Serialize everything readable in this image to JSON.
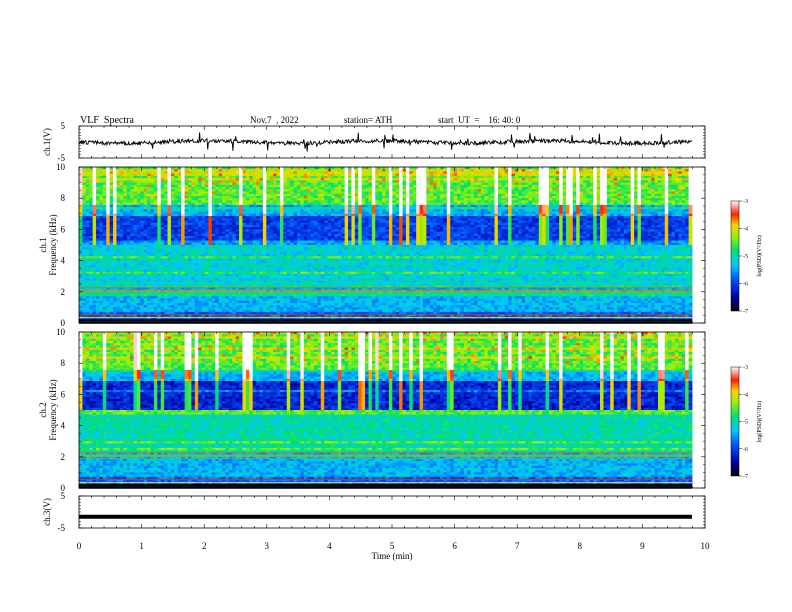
{
  "header": {
    "title": "VLF  Spectra",
    "date": "Nov.7  , 2022",
    "station": "station= ATH",
    "start_ut": "start  UT  =    16: 40: 0"
  },
  "chart_data": [
    {
      "type": "line",
      "ylabel": "ch.1(V)",
      "ylim": [
        -5,
        5
      ],
      "y_ticks": [
        "5",
        "-5"
      ],
      "xlim": [
        0,
        10
      ],
      "description_values": "noisy waveform centered near 0 V with spikes"
    },
    {
      "type": "heatmap",
      "ylabel_channel": "ch.1",
      "ylabel": "Frequency  (kHz)",
      "ylim": [
        0,
        10
      ],
      "y_ticks": [
        "0",
        "2",
        "4",
        "6",
        "8",
        "10"
      ],
      "xlim": [
        0,
        10
      ],
      "colorbar": {
        "label": "log(PSD)(V²/Hz)",
        "range": [
          -7,
          -3
        ],
        "ticks": [
          "-3",
          "-4",
          "-5",
          "-6",
          "-7"
        ]
      }
    },
    {
      "type": "heatmap",
      "ylabel_channel": "ch.2",
      "ylabel": "Frequency  (kHz)",
      "ylim": [
        0,
        10
      ],
      "y_ticks": [
        "0",
        "2",
        "4",
        "6",
        "8",
        "10"
      ],
      "xlim": [
        0,
        10
      ],
      "colorbar": {
        "label": "log(PSD)(V²/Hz)",
        "range": [
          -7,
          -3
        ],
        "ticks": [
          "-3",
          "-4",
          "-5",
          "-6",
          "-7"
        ]
      }
    },
    {
      "type": "line",
      "ylabel": "ch.3(V)",
      "ylim": [
        -5,
        5
      ],
      "y_ticks": [
        "5",
        "-5"
      ],
      "xlim": [
        0,
        10
      ],
      "x_ticks": [
        "0",
        "1",
        "2",
        "3",
        "4",
        "5",
        "6",
        "7",
        "8",
        "9",
        "10"
      ],
      "xlabel": "Time  (min)",
      "values_constant": -1.5
    }
  ]
}
